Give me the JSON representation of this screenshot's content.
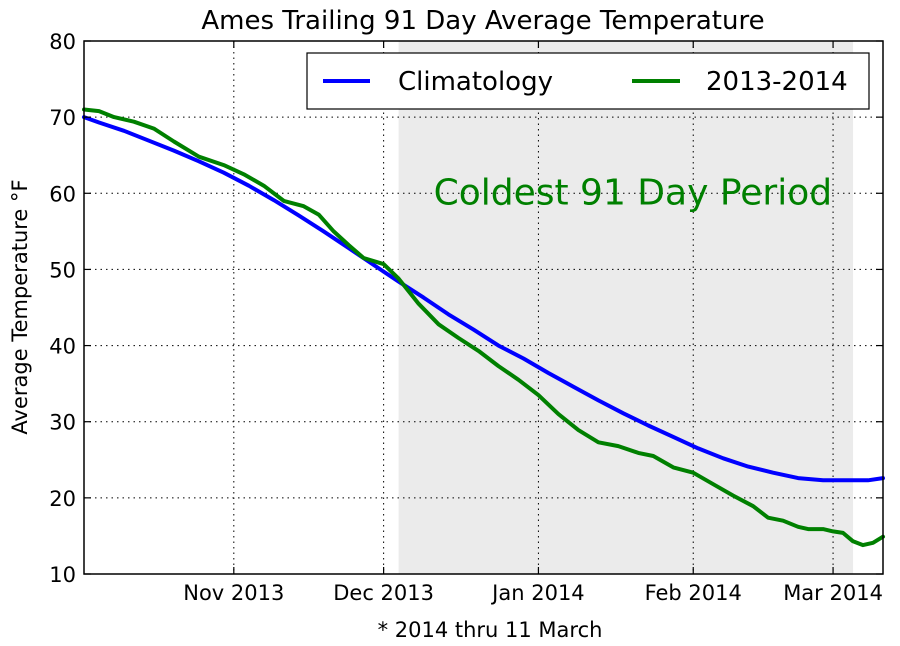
{
  "chart_data": {
    "type": "line",
    "title": "Ames Trailing 91 Day Average Temperature",
    "xlabel": "* 2014 thru 11 March",
    "ylabel": "Average Temperature °F",
    "xlim": [
      "2013-10-02",
      "2014-03-11"
    ],
    "ylim": [
      10,
      80
    ],
    "yticks": [
      10,
      20,
      30,
      40,
      50,
      60,
      70,
      80
    ],
    "xticks": [
      {
        "date": "2013-11-01",
        "label": "Nov 2013"
      },
      {
        "date": "2013-12-01",
        "label": "Dec 2013"
      },
      {
        "date": "2014-01-01",
        "label": "Jan 2014"
      },
      {
        "date": "2014-02-01",
        "label": "Feb 2014"
      },
      {
        "date": "2014-03-01",
        "label": "Mar 2014"
      }
    ],
    "grid": true,
    "legend_position": "top-right",
    "shaded_region": {
      "start": "2013-12-04",
      "end": "2014-03-05",
      "color": "#ebebeb",
      "label": "Coldest 91 Day Period",
      "label_color": "#008000"
    },
    "series": [
      {
        "name": "Climatology",
        "color": "#0000ff",
        "points": [
          [
            "2013-10-02",
            70.0
          ],
          [
            "2013-10-05",
            69.3
          ],
          [
            "2013-10-10",
            68.2
          ],
          [
            "2013-10-15",
            66.9
          ],
          [
            "2013-10-20",
            65.6
          ],
          [
            "2013-10-25",
            64.2
          ],
          [
            "2013-10-30",
            62.7
          ],
          [
            "2013-11-04",
            61.0
          ],
          [
            "2013-11-09",
            59.1
          ],
          [
            "2013-11-14",
            57.1
          ],
          [
            "2013-11-19",
            55.0
          ],
          [
            "2013-11-24",
            52.8
          ],
          [
            "2013-11-29",
            50.6
          ],
          [
            "2013-12-04",
            48.4
          ],
          [
            "2013-12-09",
            46.3
          ],
          [
            "2013-12-14",
            44.1
          ],
          [
            "2013-12-19",
            42.1
          ],
          [
            "2013-12-24",
            40.0
          ],
          [
            "2013-12-29",
            38.3
          ],
          [
            "2014-01-03",
            36.4
          ],
          [
            "2014-01-08",
            34.6
          ],
          [
            "2014-01-13",
            32.8
          ],
          [
            "2014-01-18",
            31.1
          ],
          [
            "2014-01-23",
            29.5
          ],
          [
            "2014-01-28",
            28.0
          ],
          [
            "2014-02-02",
            26.5
          ],
          [
            "2014-02-07",
            25.2
          ],
          [
            "2014-02-12",
            24.1
          ],
          [
            "2014-02-17",
            23.3
          ],
          [
            "2014-02-22",
            22.6
          ],
          [
            "2014-02-27",
            22.3
          ],
          [
            "2014-03-04",
            22.3
          ],
          [
            "2014-03-08",
            22.3
          ],
          [
            "2014-03-11",
            22.6
          ]
        ]
      },
      {
        "name": "2013-2014",
        "color": "#008000",
        "points": [
          [
            "2013-10-02",
            71.0
          ],
          [
            "2013-10-05",
            70.8
          ],
          [
            "2013-10-08",
            70.0
          ],
          [
            "2013-10-12",
            69.4
          ],
          [
            "2013-10-16",
            68.5
          ],
          [
            "2013-10-20",
            66.8
          ],
          [
            "2013-10-25",
            64.8
          ],
          [
            "2013-10-30",
            63.7
          ],
          [
            "2013-11-03",
            62.5
          ],
          [
            "2013-11-07",
            61.0
          ],
          [
            "2013-11-11",
            59.0
          ],
          [
            "2013-11-15",
            58.3
          ],
          [
            "2013-11-18",
            57.2
          ],
          [
            "2013-11-21",
            55.0
          ],
          [
            "2013-11-24",
            53.2
          ],
          [
            "2013-11-27",
            51.5
          ],
          [
            "2013-12-01",
            50.7
          ],
          [
            "2013-12-04",
            48.8
          ],
          [
            "2013-12-08",
            45.5
          ],
          [
            "2013-12-12",
            42.8
          ],
          [
            "2013-12-16",
            41.0
          ],
          [
            "2013-12-20",
            39.3
          ],
          [
            "2013-12-24",
            37.3
          ],
          [
            "2013-12-28",
            35.5
          ],
          [
            "2014-01-01",
            33.5
          ],
          [
            "2014-01-05",
            31.0
          ],
          [
            "2014-01-09",
            28.9
          ],
          [
            "2014-01-13",
            27.3
          ],
          [
            "2014-01-17",
            26.8
          ],
          [
            "2014-01-21",
            25.9
          ],
          [
            "2014-01-24",
            25.5
          ],
          [
            "2014-01-28",
            24.0
          ],
          [
            "2014-02-01",
            23.3
          ],
          [
            "2014-02-05",
            21.8
          ],
          [
            "2014-02-09",
            20.3
          ],
          [
            "2014-02-13",
            18.9
          ],
          [
            "2014-02-16",
            17.4
          ],
          [
            "2014-02-19",
            17.0
          ],
          [
            "2014-02-22",
            16.2
          ],
          [
            "2014-02-24",
            15.9
          ],
          [
            "2014-02-27",
            15.9
          ],
          [
            "2014-03-01",
            15.6
          ],
          [
            "2014-03-03",
            15.4
          ],
          [
            "2014-03-05",
            14.3
          ],
          [
            "2014-03-07",
            13.8
          ],
          [
            "2014-03-09",
            14.1
          ],
          [
            "2014-03-11",
            14.9
          ]
        ]
      }
    ]
  }
}
